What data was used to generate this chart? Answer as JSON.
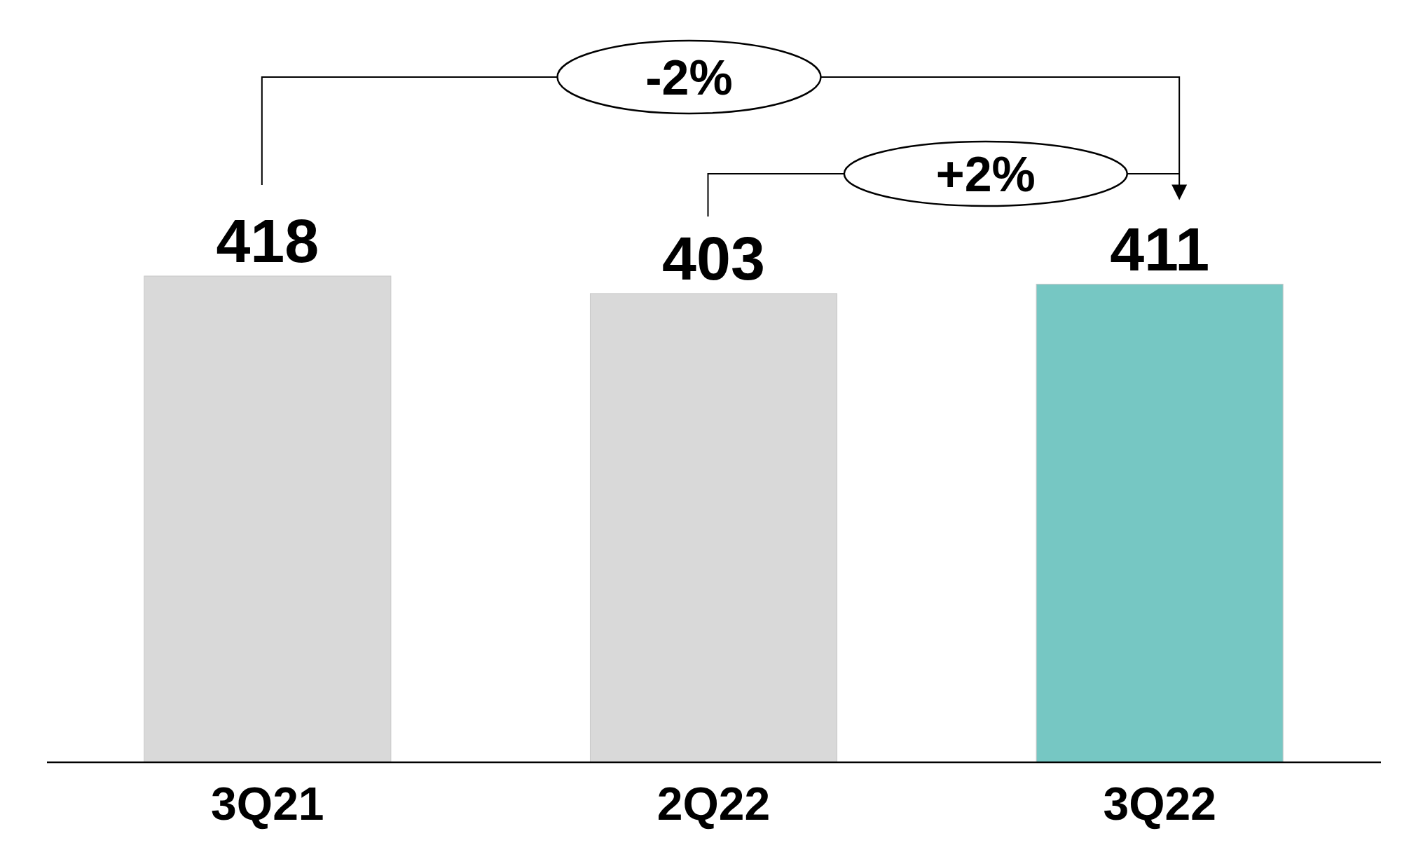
{
  "chart_data": {
    "type": "bar",
    "categories": [
      "3Q21",
      "2Q22",
      "3Q22"
    ],
    "values": [
      418,
      403,
      411
    ],
    "colors": [
      "#d9d9d9",
      "#d9d9d9",
      "#76c7c3"
    ],
    "data_labels": true,
    "annotations": [
      "-2%",
      "+2%"
    ]
  }
}
